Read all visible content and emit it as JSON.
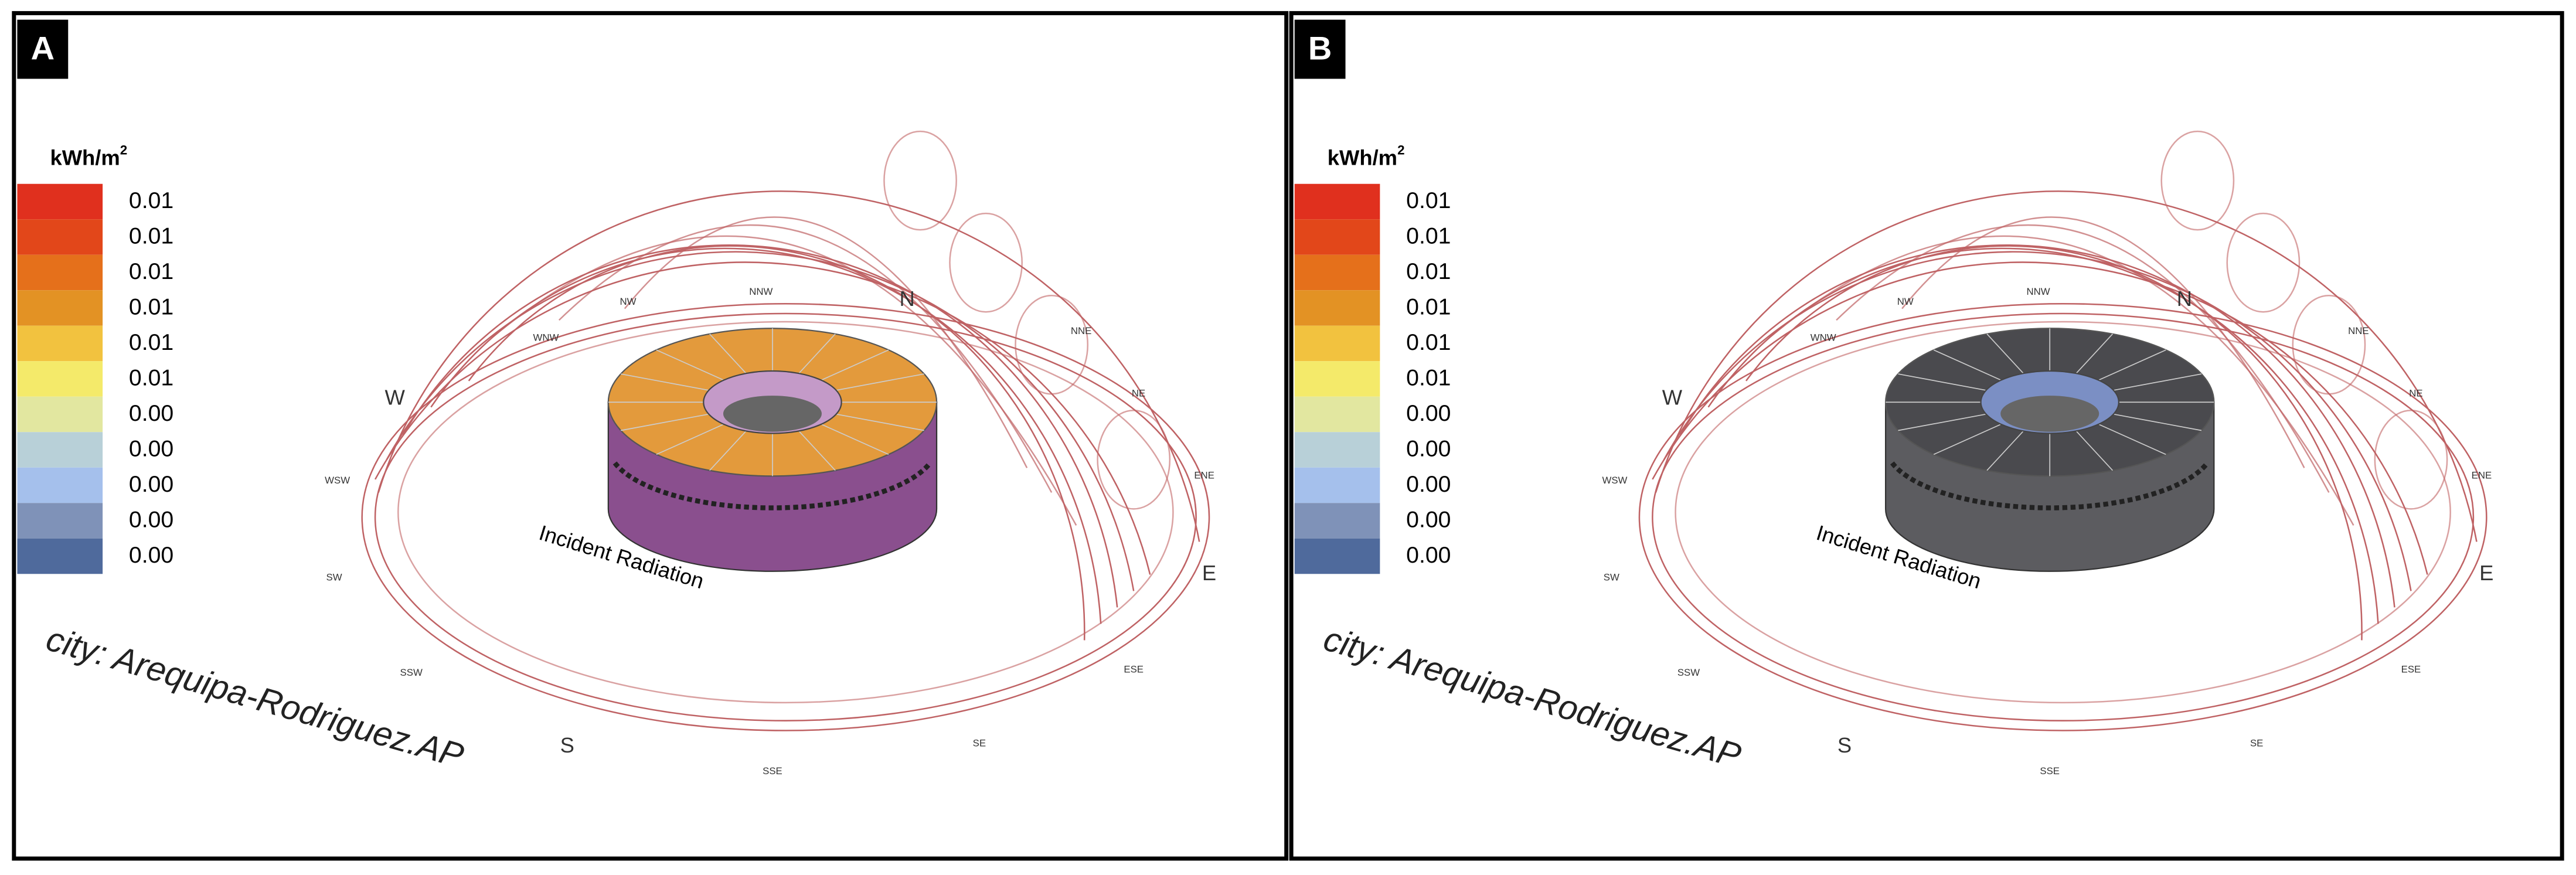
{
  "panels": [
    {
      "label": "A",
      "legend": {
        "title": "kWh/m",
        "title_sup": "2",
        "entries": [
          {
            "color": "#e0301e",
            "value": "0.01"
          },
          {
            "color": "#e2471a",
            "value": "0.01"
          },
          {
            "color": "#e5701b",
            "value": "0.01"
          },
          {
            "color": "#e39224",
            "value": "0.01"
          },
          {
            "color": "#f2c23f",
            "value": "0.01"
          },
          {
            "color": "#f4ea6a",
            "value": "0.01"
          },
          {
            "color": "#e2e7a0",
            "value": "0.00"
          },
          {
            "color": "#b8d0d8",
            "value": "0.00"
          },
          {
            "color": "#a5c0ec",
            "value": "0.00"
          },
          {
            "color": "#7f92b8",
            "value": "0.00"
          },
          {
            "color": "#4f6a9c",
            "value": "0.00"
          }
        ]
      },
      "compass": [
        "N",
        "NNE",
        "NE",
        "ENE",
        "E",
        "ESE",
        "SE",
        "SSE",
        "S",
        "SSW",
        "SW",
        "WSW",
        "W",
        "WNW",
        "NW",
        "NNW"
      ],
      "annotation": "Incident Radiation",
      "city": "city: Arequipa-Rodriguez.AP",
      "roof_color": "#e39a3c",
      "wall_color": "#8a4f8e"
    },
    {
      "label": "B",
      "legend": {
        "title": "kWh/m",
        "title_sup": "2",
        "entries": [
          {
            "color": "#e0301e",
            "value": "0.01"
          },
          {
            "color": "#e2471a",
            "value": "0.01"
          },
          {
            "color": "#e5701b",
            "value": "0.01"
          },
          {
            "color": "#e39224",
            "value": "0.01"
          },
          {
            "color": "#f2c23f",
            "value": "0.01"
          },
          {
            "color": "#f4ea6a",
            "value": "0.01"
          },
          {
            "color": "#e2e7a0",
            "value": "0.00"
          },
          {
            "color": "#b8d0d8",
            "value": "0.00"
          },
          {
            "color": "#a5c0ec",
            "value": "0.00"
          },
          {
            "color": "#7f92b8",
            "value": "0.00"
          },
          {
            "color": "#4f6a9c",
            "value": "0.00"
          }
        ]
      },
      "compass": [
        "N",
        "NNE",
        "NE",
        "ENE",
        "E",
        "ESE",
        "SE",
        "SSE",
        "S",
        "SSW",
        "SW",
        "WSW",
        "W",
        "WNW",
        "NW",
        "NNW"
      ],
      "annotation": "Incident Radiation",
      "city": "city: Arequipa-Rodriguez.AP",
      "roof_color": "#4a4a4e",
      "wall_color": "#5c5c60"
    }
  ]
}
